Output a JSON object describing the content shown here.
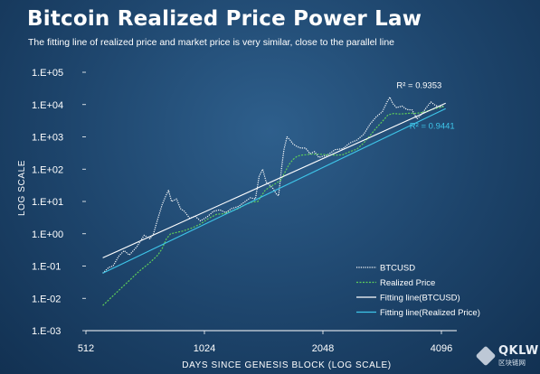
{
  "chart_data": {
    "type": "line",
    "title": "Bitcoin Realized Price Power Law",
    "subtitle": "The fitting line of realized price and market price is very similar, close to the parallel line",
    "xlabel": "DAYS SINCE GENESIS BLOCK (LOG SCALE)",
    "ylabel": "LOG SCALE",
    "x_scale": "log2",
    "y_scale": "log10",
    "xlim": [
      512,
      4096
    ],
    "ylim": [
      0.001,
      100000
    ],
    "x_ticks": [
      {
        "value": 512,
        "label": "512"
      },
      {
        "value": 1024,
        "label": "1024"
      },
      {
        "value": 2048,
        "label": "2048"
      },
      {
        "value": 4096,
        "label": "4096"
      }
    ],
    "y_ticks": [
      {
        "value": 100000,
        "label": "1.E+05"
      },
      {
        "value": 10000,
        "label": "1.E+04"
      },
      {
        "value": 1000,
        "label": "1.E+03"
      },
      {
        "value": 100,
        "label": "1.E+02"
      },
      {
        "value": 10,
        "label": "1.E+01"
      },
      {
        "value": 1,
        "label": "1.E+00"
      },
      {
        "value": 0.1,
        "label": "1.E-01"
      },
      {
        "value": 0.01,
        "label": "1.E-02"
      },
      {
        "value": 0.001,
        "label": "1.E-03"
      }
    ],
    "grid": false,
    "legend_position": "bottom-right",
    "series": [
      {
        "name": "BTCUSD",
        "style": "dotted",
        "color": "#ffffff",
        "points": [
          [
            565,
            0.06
          ],
          [
            585,
            0.09
          ],
          [
            600,
            0.1
          ],
          [
            620,
            0.2
          ],
          [
            640,
            0.3
          ],
          [
            660,
            0.22
          ],
          [
            690,
            0.4
          ],
          [
            720,
            0.9
          ],
          [
            745,
            0.7
          ],
          [
            760,
            1.0
          ],
          [
            780,
            3.0
          ],
          [
            800,
            8.0
          ],
          [
            815,
            14
          ],
          [
            830,
            22
          ],
          [
            845,
            10
          ],
          [
            870,
            12
          ],
          [
            890,
            6
          ],
          [
            910,
            5
          ],
          [
            940,
            3
          ],
          [
            970,
            3.5
          ],
          [
            1000,
            2.5
          ],
          [
            1040,
            3.3
          ],
          [
            1080,
            5
          ],
          [
            1120,
            5.5
          ],
          [
            1160,
            4.5
          ],
          [
            1200,
            6
          ],
          [
            1250,
            7
          ],
          [
            1300,
            10
          ],
          [
            1340,
            13
          ],
          [
            1380,
            12
          ],
          [
            1410,
            60
          ],
          [
            1440,
            100
          ],
          [
            1470,
            40
          ],
          [
            1500,
            32
          ],
          [
            1530,
            25
          ],
          [
            1560,
            17
          ],
          [
            1580,
            15
          ],
          [
            1610,
            120
          ],
          [
            1630,
            400
          ],
          [
            1660,
            1000
          ],
          [
            1690,
            800
          ],
          [
            1720,
            600
          ],
          [
            1760,
            500
          ],
          [
            1800,
            450
          ],
          [
            1850,
            450
          ],
          [
            1900,
            300
          ],
          [
            1950,
            350
          ],
          [
            2000,
            230
          ],
          [
            2050,
            250
          ],
          [
            2100,
            270
          ],
          [
            2200,
            400
          ],
          [
            2300,
            430
          ],
          [
            2400,
            650
          ],
          [
            2500,
            800
          ],
          [
            2600,
            1200
          ],
          [
            2700,
            2500
          ],
          [
            2800,
            4200
          ],
          [
            2900,
            6000
          ],
          [
            2980,
            12000
          ],
          [
            3030,
            17000
          ],
          [
            3080,
            11000
          ],
          [
            3150,
            8000
          ],
          [
            3250,
            9000
          ],
          [
            3350,
            7000
          ],
          [
            3450,
            6800
          ],
          [
            3550,
            3600
          ],
          [
            3650,
            5000
          ],
          [
            3750,
            8000
          ],
          [
            3850,
            12000
          ],
          [
            3950,
            9500
          ],
          [
            4050,
            8500
          ],
          [
            4150,
            9000
          ]
        ]
      },
      {
        "name": "Realized Price",
        "style": "dashed",
        "color": "#5fcf5a",
        "points": [
          [
            565,
            0.006
          ],
          [
            600,
            0.012
          ],
          [
            650,
            0.03
          ],
          [
            700,
            0.07
          ],
          [
            740,
            0.12
          ],
          [
            780,
            0.22
          ],
          [
            800,
            0.35
          ],
          [
            820,
            0.7
          ],
          [
            840,
            1.0
          ],
          [
            870,
            1.1
          ],
          [
            900,
            1.2
          ],
          [
            950,
            1.5
          ],
          [
            1000,
            2.0
          ],
          [
            1050,
            3.0
          ],
          [
            1100,
            4.0
          ],
          [
            1150,
            4.2
          ],
          [
            1200,
            5.0
          ],
          [
            1250,
            6.0
          ],
          [
            1300,
            8.0
          ],
          [
            1350,
            9.5
          ],
          [
            1400,
            10
          ],
          [
            1430,
            15
          ],
          [
            1460,
            22
          ],
          [
            1500,
            28
          ],
          [
            1550,
            35
          ],
          [
            1600,
            45
          ],
          [
            1640,
            80
          ],
          [
            1680,
            140
          ],
          [
            1720,
            200
          ],
          [
            1760,
            250
          ],
          [
            1800,
            270
          ],
          [
            1850,
            280
          ],
          [
            1900,
            290
          ],
          [
            2000,
            290
          ],
          [
            2100,
            280
          ],
          [
            2200,
            270
          ],
          [
            2300,
            280
          ],
          [
            2400,
            350
          ],
          [
            2500,
            420
          ],
          [
            2600,
            650
          ],
          [
            2700,
            1100
          ],
          [
            2800,
            1900
          ],
          [
            2900,
            3000
          ],
          [
            3000,
            4800
          ],
          [
            3100,
            5300
          ],
          [
            3200,
            5100
          ],
          [
            3300,
            5200
          ],
          [
            3400,
            5400
          ],
          [
            3500,
            5300
          ],
          [
            3600,
            5500
          ],
          [
            3700,
            5800
          ],
          [
            3800,
            6500
          ],
          [
            3900,
            7200
          ],
          [
            4000,
            7800
          ],
          [
            4100,
            8300
          ],
          [
            4150,
            8700
          ]
        ]
      },
      {
        "name": "Fitting line(BTCUSD)",
        "style": "solid",
        "color": "#ffffff",
        "points": [
          [
            565,
            0.18
          ],
          [
            4200,
            11000
          ]
        ]
      },
      {
        "name": "Fitting line(Realized Price)",
        "style": "solid",
        "color": "#3ec6ea",
        "points": [
          [
            565,
            0.06
          ],
          [
            4200,
            7500
          ]
        ]
      }
    ],
    "annotations": [
      {
        "text": "R² = 0.9353",
        "x": 3150,
        "y": 32000,
        "color": "#ffffff"
      },
      {
        "text": "R² = 0.9441",
        "x": 3400,
        "y": 1800,
        "color": "#3ec6ea"
      }
    ]
  },
  "watermark": {
    "brand": "QKLW",
    "sub": "区块链网"
  }
}
